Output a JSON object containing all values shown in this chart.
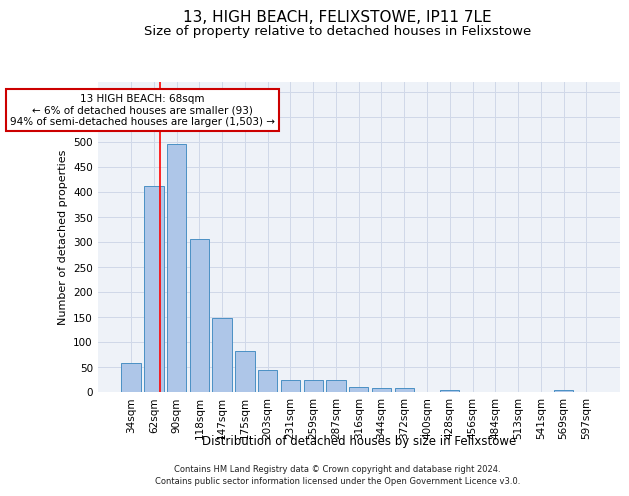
{
  "title1": "13, HIGH BEACH, FELIXSTOWE, IP11 7LE",
  "title2": "Size of property relative to detached houses in Felixstowe",
  "xlabel": "Distribution of detached houses by size in Felixstowe",
  "ylabel": "Number of detached properties",
  "footer1": "Contains HM Land Registry data © Crown copyright and database right 2024.",
  "footer2": "Contains public sector information licensed under the Open Government Licence v3.0.",
  "categories": [
    "34sqm",
    "62sqm",
    "90sqm",
    "118sqm",
    "147sqm",
    "175sqm",
    "203sqm",
    "231sqm",
    "259sqm",
    "287sqm",
    "316sqm",
    "344sqm",
    "372sqm",
    "400sqm",
    "428sqm",
    "456sqm",
    "484sqm",
    "513sqm",
    "541sqm",
    "569sqm",
    "597sqm"
  ],
  "values": [
    58,
    412,
    495,
    306,
    149,
    82,
    45,
    25,
    25,
    25,
    10,
    8,
    8,
    0,
    5,
    0,
    0,
    0,
    0,
    5,
    0
  ],
  "bar_color": "#aec6e8",
  "bar_edge_color": "#4a90c4",
  "red_line_x": 1.27,
  "annotation_line1": "13 HIGH BEACH: 68sqm",
  "annotation_line2": "← 6% of detached houses are smaller (93)",
  "annotation_line3": "94% of semi-detached houses are larger (1,503) →",
  "annotation_box_color": "#ffffff",
  "annotation_box_edge": "#cc0000",
  "ylim": [
    0,
    620
  ],
  "yticks": [
    0,
    50,
    100,
    150,
    200,
    250,
    300,
    350,
    400,
    450,
    500,
    550,
    600
  ],
  "grid_color": "#d0d8e8",
  "bg_color": "#eef2f8",
  "title1_fontsize": 11,
  "title2_fontsize": 9.5,
  "xlabel_fontsize": 8.5,
  "ylabel_fontsize": 8,
  "tick_fontsize": 7.5,
  "annotation_fontsize": 7.5,
  "footer_fontsize": 6.0
}
